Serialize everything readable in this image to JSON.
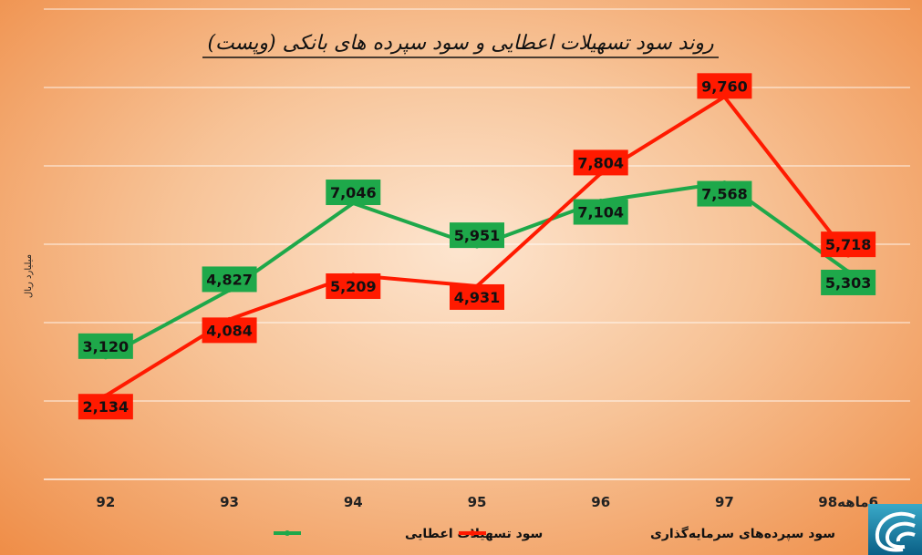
{
  "chart_data": {
    "type": "line",
    "title": "روند سود تسهیلات اعطایی و سود سپرده های بانکی (وپست)",
    "ylabel": "میلیارد ریال",
    "xlabel": "",
    "categories": [
      "92",
      "93",
      "94",
      "95",
      "96",
      "97",
      "6ماهه98"
    ],
    "series": [
      {
        "name": "سود تسهیلات اعطایی",
        "color": "#1ea84a",
        "values": [
          3120,
          4827,
          7046,
          5951,
          7104,
          7568,
          5303
        ],
        "labels": [
          "3,120",
          "4,827",
          "7,046",
          "5,951",
          "7,104",
          "7,568",
          "5,303"
        ]
      },
      {
        "name": "سود سپرده‌های سرمایه‌گذاری",
        "color": "#ff1a00",
        "values": [
          2134,
          4084,
          5209,
          4931,
          7804,
          9760,
          5718
        ],
        "labels": [
          "2,134",
          "4,084",
          "5,209",
          "4,931",
          "7,804",
          "9,760",
          "5,718"
        ]
      }
    ],
    "ylim": [
      0,
      12000
    ],
    "grid": true,
    "legend_position": "bottom"
  },
  "logo": {
    "icon": "publisher-logo-icon"
  }
}
